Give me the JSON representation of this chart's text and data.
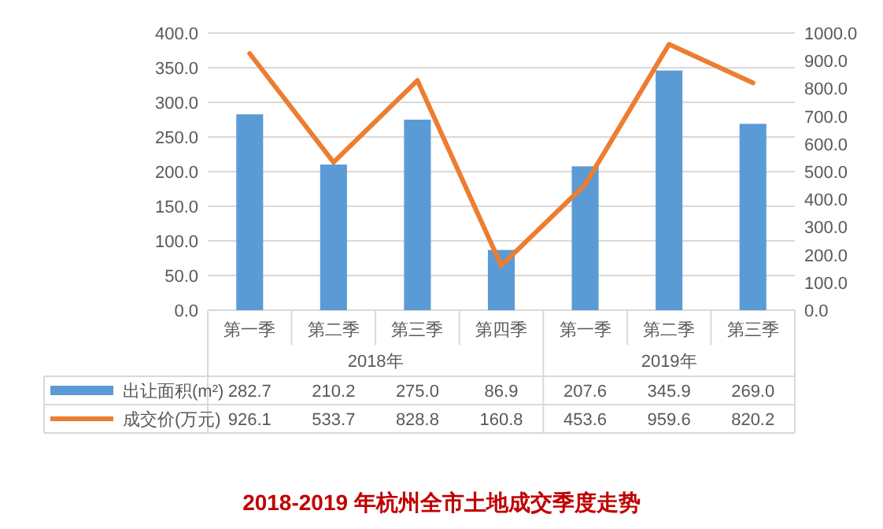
{
  "chart_data": {
    "type": "bar",
    "title": "2018-2019 年杭州全市土地成交季度走势",
    "categories": [
      "第一季",
      "第二季",
      "第三季",
      "第四季",
      "第一季",
      "第二季",
      "第三季"
    ],
    "annotations": [
      "2018年",
      "2019年"
    ],
    "series": [
      {
        "name": "出让面积(m²)",
        "color": "#5b9bd5",
        "values": [
          282.7,
          210.2,
          275.0,
          86.9,
          207.6,
          345.9,
          269.0
        ],
        "value_labels": [
          "282.7",
          "210.2",
          "275.0",
          "86.9",
          "207.6",
          "345.9",
          "269.0"
        ]
      },
      {
        "name": "成交价(万元)",
        "type": "line",
        "axis": "y2",
        "color": "#ed7d31",
        "values": [
          926.1,
          533.7,
          828.8,
          160.8,
          453.6,
          959.6,
          820.2
        ],
        "value_labels": [
          "926.1",
          "533.7",
          "828.8",
          "160.8",
          "453.6",
          "959.6",
          "820.2"
        ]
      }
    ],
    "ylim": [
      0,
      400
    ],
    "yticks": [
      {
        "value": 0,
        "label": "0.0"
      },
      {
        "value": 50,
        "label": "50.0"
      },
      {
        "value": 100,
        "label": "100.0"
      },
      {
        "value": 150,
        "label": "150.0"
      },
      {
        "value": 200,
        "label": "200.0"
      },
      {
        "value": 250,
        "label": "250.0"
      },
      {
        "value": 300,
        "label": "300.0"
      },
      {
        "value": 350,
        "label": "350.0"
      },
      {
        "value": 400,
        "label": "400.0"
      }
    ],
    "y2lim": [
      0,
      1000
    ],
    "y2ticks": [
      {
        "value": 0,
        "label": "0.0"
      },
      {
        "value": 100,
        "label": "100.0"
      },
      {
        "value": 200,
        "label": "200.0"
      },
      {
        "value": 300,
        "label": "300.0"
      },
      {
        "value": 400,
        "label": "400.0"
      },
      {
        "value": 500,
        "label": "500.0"
      },
      {
        "value": 600,
        "label": "600.0"
      },
      {
        "value": 700,
        "label": "700.0"
      },
      {
        "value": 800,
        "label": "800.0"
      },
      {
        "value": 900,
        "label": "900.0"
      },
      {
        "value": 1000,
        "label": "1000.0"
      }
    ],
    "grid": "y",
    "legend": "bottom left",
    "marker": "none",
    "line_style": "solid"
  }
}
